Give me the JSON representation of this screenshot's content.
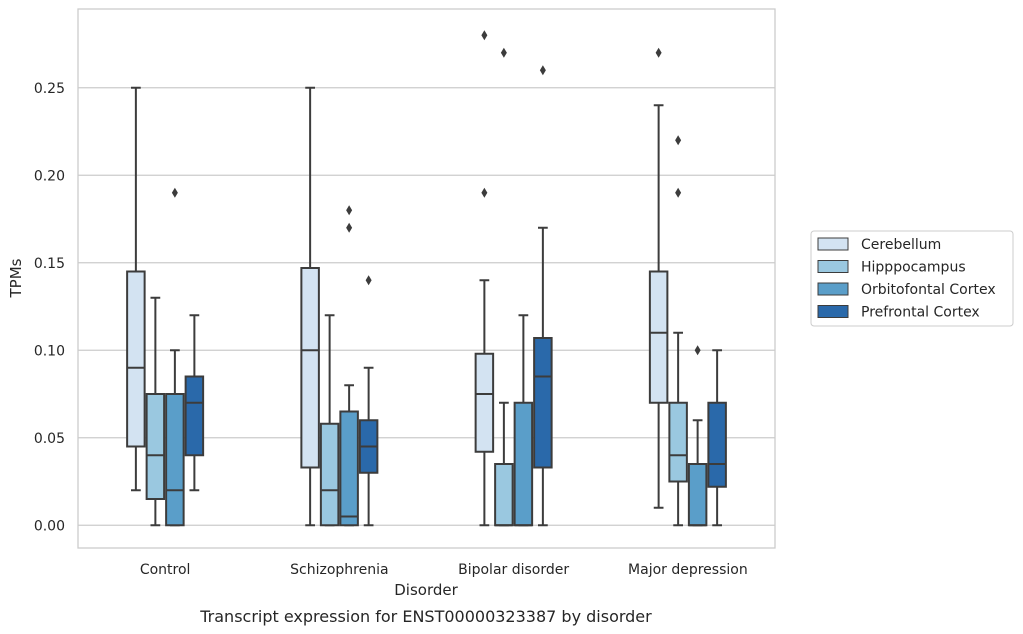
{
  "caption": "Transcript expression for ENST00000323387 by disorder",
  "chart_data": {
    "type": "boxplot",
    "title": "",
    "xlabel": "Disorder",
    "ylabel": "TPMs",
    "ylim": [
      -0.013,
      0.295
    ],
    "yticks": [
      0.0,
      0.05,
      0.1,
      0.15,
      0.2,
      0.25
    ],
    "ytick_labels": [
      "0.00",
      "0.05",
      "0.10",
      "0.15",
      "0.20",
      "0.25"
    ],
    "grid": "horizontal",
    "legend_position": "right",
    "categories": [
      "Control",
      "Schizophrenia",
      "Bipolar disorder",
      "Major depression"
    ],
    "series": [
      {
        "name": "Cerebellum",
        "color": "#d3e3f2",
        "boxes": [
          {
            "whislo": 0.02,
            "q1": 0.045,
            "med": 0.09,
            "q3": 0.145,
            "whishi": 0.25,
            "fliers": []
          },
          {
            "whislo": 0.0,
            "q1": 0.033,
            "med": 0.1,
            "q3": 0.147,
            "whishi": 0.25,
            "fliers": []
          },
          {
            "whislo": 0.0,
            "q1": 0.042,
            "med": 0.075,
            "q3": 0.098,
            "whishi": 0.14,
            "fliers": [
              0.19,
              0.28
            ]
          },
          {
            "whislo": 0.01,
            "q1": 0.07,
            "med": 0.11,
            "q3": 0.145,
            "whishi": 0.24,
            "fliers": [
              0.27
            ]
          }
        ]
      },
      {
        "name": "Hipppocampus",
        "color": "#9ac8e0",
        "boxes": [
          {
            "whislo": 0.0,
            "q1": 0.015,
            "med": 0.04,
            "q3": 0.075,
            "whishi": 0.13,
            "fliers": []
          },
          {
            "whislo": 0.0,
            "q1": 0.0,
            "med": 0.02,
            "q3": 0.058,
            "whishi": 0.12,
            "fliers": []
          },
          {
            "whislo": 0.0,
            "q1": 0.0,
            "med": 0.0,
            "q3": 0.035,
            "whishi": 0.07,
            "fliers": [
              0.27
            ]
          },
          {
            "whislo": 0.0,
            "q1": 0.025,
            "med": 0.04,
            "q3": 0.07,
            "whishi": 0.11,
            "fliers": [
              0.19,
              0.22
            ]
          }
        ]
      },
      {
        "name": "Orbitofontal Cortex",
        "color": "#5a9ec9",
        "boxes": [
          {
            "whislo": 0.0,
            "q1": 0.0,
            "med": 0.02,
            "q3": 0.075,
            "whishi": 0.1,
            "fliers": [
              0.19
            ]
          },
          {
            "whislo": 0.0,
            "q1": 0.0,
            "med": 0.005,
            "q3": 0.065,
            "whishi": 0.08,
            "fliers": [
              0.17,
              0.18
            ]
          },
          {
            "whislo": 0.0,
            "q1": 0.0,
            "med": 0.0,
            "q3": 0.07,
            "whishi": 0.12,
            "fliers": []
          },
          {
            "whislo": 0.0,
            "q1": 0.0,
            "med": 0.0,
            "q3": 0.035,
            "whishi": 0.06,
            "fliers": [
              0.1
            ]
          }
        ]
      },
      {
        "name": "Prefrontal Cortex",
        "color": "#2a69aa",
        "boxes": [
          {
            "whislo": 0.02,
            "q1": 0.04,
            "med": 0.07,
            "q3": 0.085,
            "whishi": 0.12,
            "fliers": []
          },
          {
            "whislo": 0.0,
            "q1": 0.03,
            "med": 0.045,
            "q3": 0.06,
            "whishi": 0.09,
            "fliers": [
              0.14
            ]
          },
          {
            "whislo": 0.0,
            "q1": 0.033,
            "med": 0.085,
            "q3": 0.107,
            "whishi": 0.17,
            "fliers": [
              0.26
            ]
          },
          {
            "whislo": 0.0,
            "q1": 0.022,
            "med": 0.035,
            "q3": 0.07,
            "whishi": 0.1,
            "fliers": []
          }
        ]
      }
    ]
  }
}
